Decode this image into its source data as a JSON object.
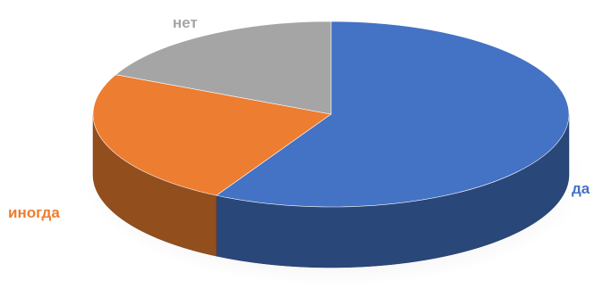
{
  "chart_data": {
    "type": "pie",
    "style": "3d",
    "title": "",
    "legend": "none",
    "start_angle_deg": 0,
    "slices": [
      {
        "label": "да",
        "value": 58,
        "color": "#4472C4"
      },
      {
        "label": "иногда",
        "value": 24,
        "color": "#ED7D31"
      },
      {
        "label": "нет",
        "value": 18,
        "color": "#A5A5A5"
      }
    ]
  }
}
